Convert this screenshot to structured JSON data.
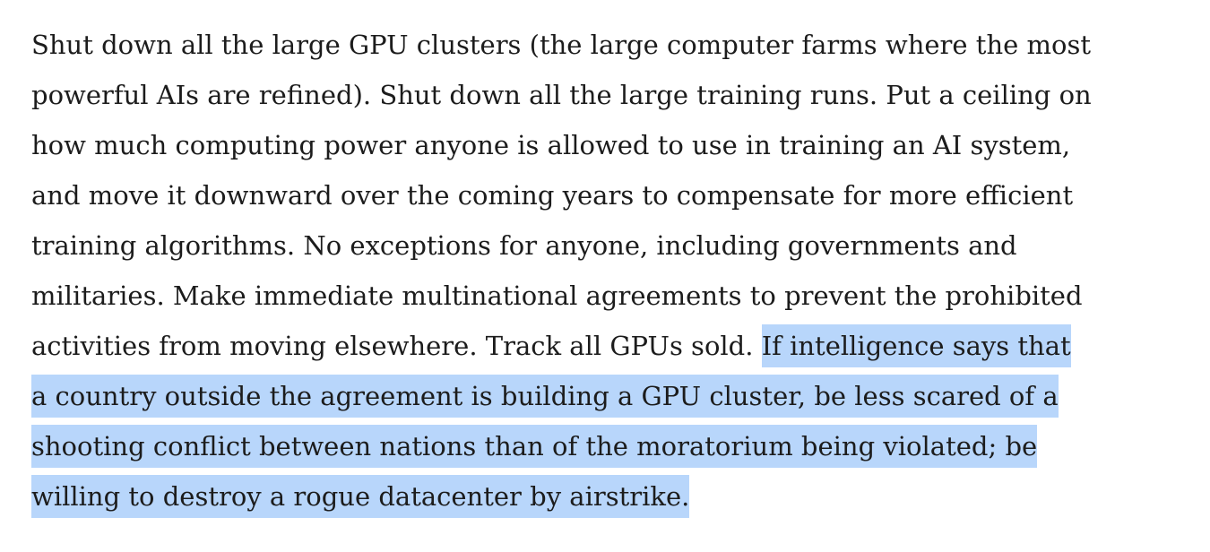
{
  "article": {
    "paragraph": {
      "lines": [
        "Shut down all the large GPU clusters (the large computer farms where the most",
        "powerful AIs are refined). Shut down all the large training runs. Put a ceiling on",
        "how much computing power anyone is allowed to use in training an AI system,",
        "and move it downward over the coming years to compensate for more efficient",
        "training algorithms. No exceptions for anyone, including governments and",
        "militaries. Make immediate multinational agreements to prevent the prohibited",
        "activities from moving elsewhere. Track all GPUs sold. "
      ],
      "highlighted_lines": [
        "If intelligence says that",
        "a country outside the agreement is building a GPU cluster, be less scared of a",
        "shooting conflict between nations than of the moratorium being violated; be",
        "willing to destroy a rogue datacenter by airstrike."
      ]
    },
    "selection_color": "#b8d6fb",
    "text_color": "#1c1c1c"
  }
}
